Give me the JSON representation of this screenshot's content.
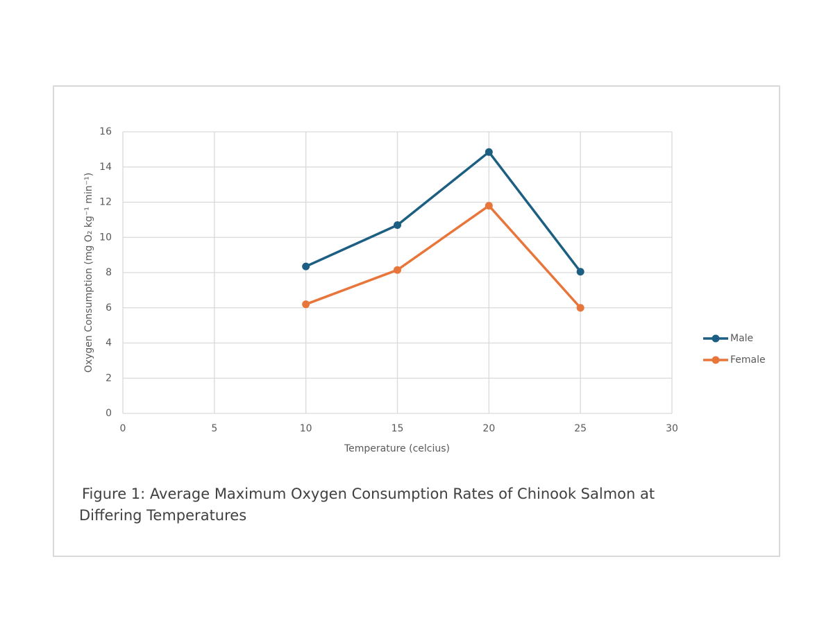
{
  "chart_data": {
    "type": "line",
    "caption": "Figure 1: Average Maximum Oxygen Consumption Rates of Chinook Salmon at Differing Temperatures",
    "xlabel": "Temperature (celcius)",
    "ylabel": "Oxygen Consumption (mg O₂ kg⁻¹ min⁻¹)",
    "x": [
      10,
      15,
      20,
      25
    ],
    "series": [
      {
        "name": "Male",
        "color": "#1d5f82",
        "values": [
          8.35,
          10.7,
          14.85,
          8.05
        ]
      },
      {
        "name": "Female",
        "color": "#e8753a",
        "values": [
          6.2,
          8.15,
          11.8,
          6.0
        ]
      }
    ],
    "xlim": [
      0,
      30
    ],
    "xticks": [
      0,
      5,
      10,
      15,
      20,
      25,
      30
    ],
    "ylim": [
      0,
      16
    ],
    "yticks": [
      0,
      2,
      4,
      6,
      8,
      10,
      12,
      14,
      16
    ],
    "grid": true,
    "legend": "right"
  }
}
